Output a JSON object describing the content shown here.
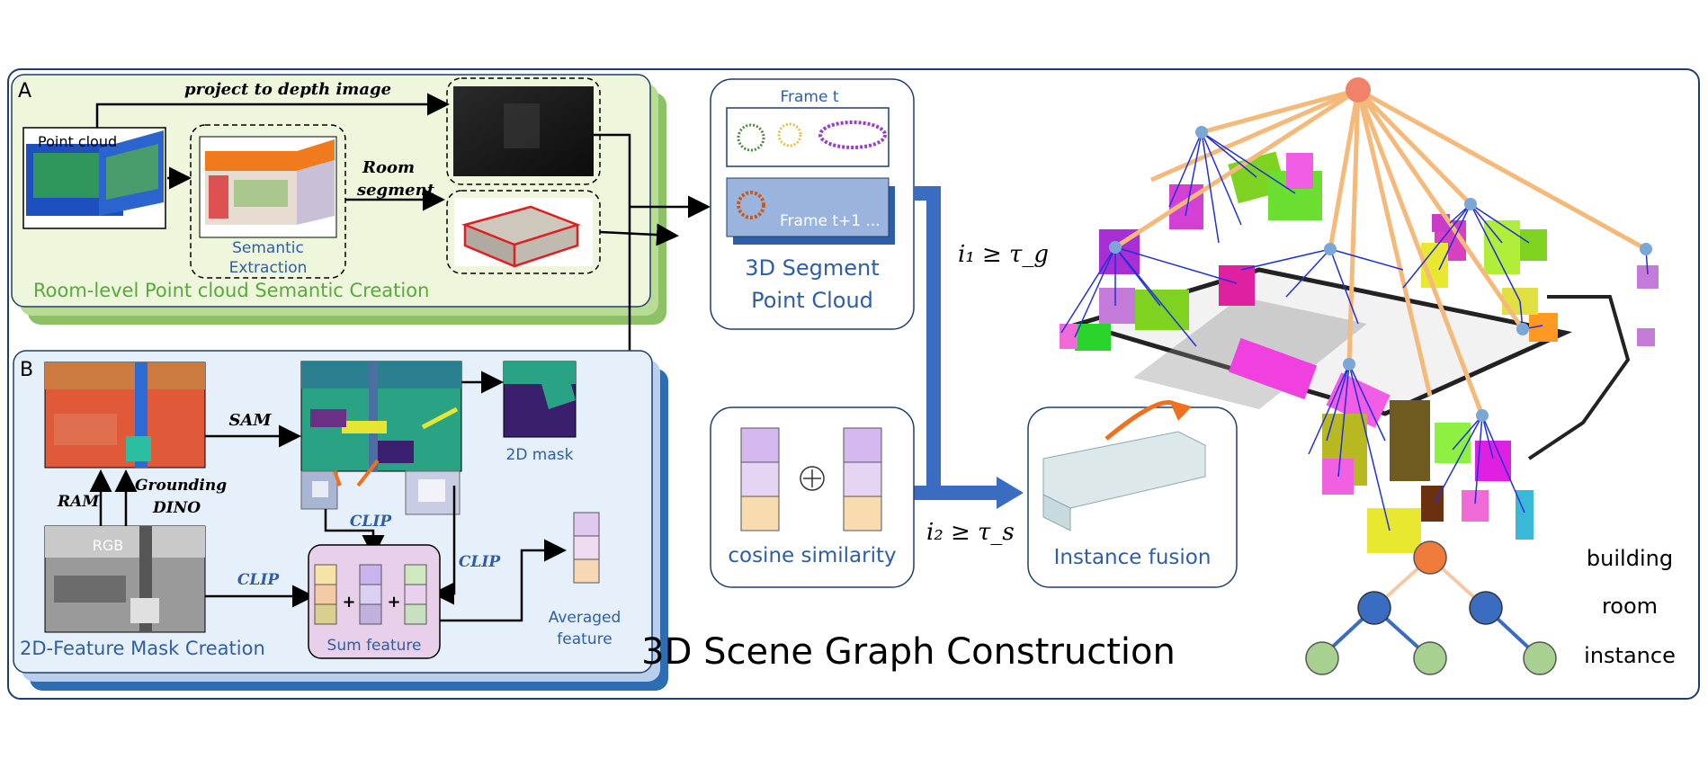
{
  "panel_a": {
    "letter": "A",
    "title": "Room-level Point cloud Semantic Creation",
    "point_cloud_label": "Point cloud",
    "project_label": "project to depth image",
    "room_segment_1": "Room",
    "room_segment_2": "segment",
    "semantic_1": "Semantic",
    "semantic_2": "Extraction"
  },
  "panel_b": {
    "letter": "B",
    "title": "2D-Feature Mask Creation",
    "sam": "SAM",
    "ram": "RAM",
    "grounding_1": "Grounding",
    "grounding_2": "DINO",
    "rgb": "RGB",
    "clip_1": "CLIP",
    "clip_2": "CLIP",
    "clip_3": "CLIP",
    "mask_label": "2D mask",
    "sum_feature": "Sum feature",
    "plus": "+",
    "averaged_1": "Averaged",
    "averaged_2": "feature"
  },
  "segment": {
    "frame_t": "Frame t",
    "frame_t1": "Frame t+1 ...",
    "title_1": "3D Segment",
    "title_2": "Point Cloud"
  },
  "cosine": {
    "label": "cosine similarity",
    "oplus": "⊕"
  },
  "thresholds": {
    "i1": "i₁ ≥ τ_g",
    "i2": "i₂ ≥ τ_s"
  },
  "fusion": {
    "label": "Instance fusion"
  },
  "main_title": "3D Scene Graph Construction",
  "legend": {
    "building": "building",
    "room": "room",
    "instance": "instance"
  },
  "colors": {
    "panel_a_fill": "#eef7dc",
    "panel_a_back": "#8cc265",
    "panel_b_fill": "#e6f0fb",
    "panel_b_back": "#2f6db3",
    "title_blue": "#2e5ea8",
    "building_node": "#f0826b",
    "room_node": "#7ba7d6",
    "edge_orange": "#f5b97a",
    "edge_blue": "#2030d8",
    "arrow_blue": "#3a6cc2"
  }
}
